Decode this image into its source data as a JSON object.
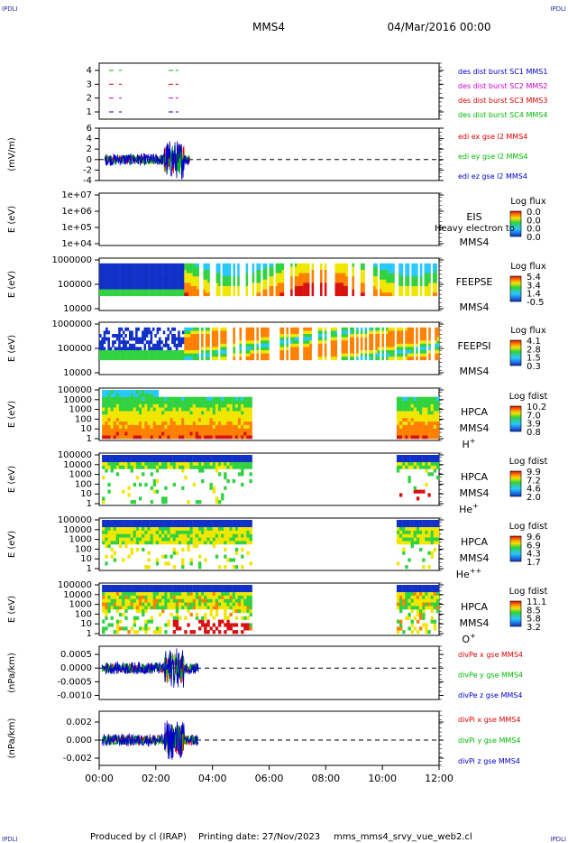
{
  "header": {
    "corner_tl": "IPDLI",
    "corner_tr": "IPDLI",
    "corner_bl": "IPDLI",
    "corner_br": "IPDLI",
    "spacecraft": "MMS4",
    "date": "04/Mar/2016 00:00"
  },
  "footer": {
    "produced_by": "Produced by cl (IRAP)",
    "printing_date": "Printing date: 27/Nov/2023",
    "script": "mms_mms4_srvy_vue_web2.cl"
  },
  "colors": {
    "spec_blue": "#1030c8",
    "spec_cyan": "#28c8ff",
    "spec_green": "#30d240",
    "spec_yellow": "#f0e600",
    "spec_orange": "#ff8000",
    "spec_red": "#d81010",
    "sc1": "#0000cc",
    "sc2": "#cc00cc",
    "sc3": "#dd0000",
    "sc4": "#00bb00"
  },
  "time_axis": {
    "ticks": [
      "00:00",
      "02:00",
      "04:00",
      "06:00",
      "08:00",
      "10:00",
      "12:00"
    ],
    "range_hours": [
      0,
      12
    ]
  },
  "chart_data": [
    {
      "type": "line",
      "id": "des-burst",
      "ylabel": "",
      "yticks": [
        "1",
        "2",
        "3",
        "4"
      ],
      "ylim": [
        0.5,
        4.5
      ],
      "series": [
        {
          "name": "des dist burst SC1 MMS1",
          "color": "#0000cc",
          "level": 1,
          "x": [
            0.35,
            0.7,
            2.45,
            2.7
          ]
        },
        {
          "name": "des dist burst SC2 MMS2",
          "color": "#cc00cc",
          "level": 2,
          "x": [
            0.35,
            0.7,
            2.45,
            2.7
          ]
        },
        {
          "name": "des dist burst SC3 MMS3",
          "color": "#dd0000",
          "level": 3,
          "x": [
            0.35,
            0.7,
            2.45,
            2.7
          ]
        },
        {
          "name": "des dist burst SC4 MMS4",
          "color": "#00bb00",
          "level": 4,
          "x": [
            0.35,
            0.7,
            2.45,
            2.7
          ]
        }
      ]
    },
    {
      "type": "line",
      "id": "edi-e",
      "ylabel": "(mV/m)",
      "yticks": [
        "-4",
        "-2",
        "0",
        "2",
        "4",
        "6"
      ],
      "ylim": [
        -4,
        6
      ],
      "x_range_hours": [
        0.2,
        3.2
      ],
      "series": [
        {
          "name": "edi ex gse l2 MMS4",
          "color": "#dd0000"
        },
        {
          "name": "edi ey gse l2 MMS4",
          "color": "#00bb00"
        },
        {
          "name": "edi ez gse l2 MMS4",
          "color": "#0000cc"
        }
      ]
    },
    {
      "type": "heatmap",
      "id": "eis",
      "ylabel": "E (eV)",
      "yticks": [
        "1e+04",
        "1e+05",
        "1e+06",
        "1e+07"
      ],
      "label": "EIS",
      "label2": "MMS4",
      "overlay_text": "Heavy electron to",
      "cbar_title": "Log flux",
      "cbar_ticks": [
        "0.0",
        "0.0",
        "0.0",
        "0.0"
      ],
      "data": []
    },
    {
      "type": "heatmap",
      "id": "feepse",
      "ylabel": "E (eV)",
      "yticks": [
        "10000",
        "100000",
        "1000000"
      ],
      "label": "FEEPSE",
      "label2": "MMS4",
      "cbar_title": "Log flux",
      "cbar_ticks": [
        "5.4",
        "3.4",
        "1.4",
        "-0.5"
      ]
    },
    {
      "type": "heatmap",
      "id": "feepsi",
      "ylabel": "E (eV)",
      "yticks": [
        "10000",
        "100000",
        "1000000"
      ],
      "label": "FEEPSI",
      "label2": "MMS4",
      "cbar_title": "Log flux",
      "cbar_ticks": [
        "4.1",
        "2.8",
        "1.5",
        "0.3"
      ]
    },
    {
      "type": "heatmap",
      "id": "hpca-h",
      "ylabel": "E (eV)",
      "yticks": [
        "1",
        "10",
        "100",
        "1000",
        "10000",
        "100000"
      ],
      "label": "HPCA",
      "label2": "MMS4",
      "species": "H",
      "species_sup": "+",
      "cbar_title": "Log fdist",
      "cbar_ticks": [
        "10.2",
        "7.0",
        "3.9",
        "0.8"
      ],
      "data_gap_hours": [
        5.35,
        10.5
      ]
    },
    {
      "type": "heatmap",
      "id": "hpca-he",
      "ylabel": "E (eV)",
      "yticks": [
        "1",
        "10",
        "100",
        "1000",
        "10000",
        "100000"
      ],
      "label": "HPCA",
      "label2": "MMS4",
      "species": "He",
      "species_sup": "+",
      "cbar_title": "Log fdist",
      "cbar_ticks": [
        "9.9",
        "7.2",
        "4.6",
        "2.0"
      ],
      "data_gap_hours": [
        5.35,
        10.5
      ]
    },
    {
      "type": "heatmap",
      "id": "hpca-hepp",
      "ylabel": "E (eV)",
      "yticks": [
        "1",
        "10",
        "100",
        "1000",
        "10000",
        "100000"
      ],
      "label": "HPCA",
      "label2": "MMS4",
      "species": "He",
      "species_sup": "++",
      "cbar_title": "Log fdist",
      "cbar_ticks": [
        "9.6",
        "6.9",
        "4.3",
        "1.7"
      ],
      "data_gap_hours": [
        5.35,
        10.5
      ]
    },
    {
      "type": "heatmap",
      "id": "hpca-o",
      "ylabel": "E (eV)",
      "yticks": [
        "1",
        "10",
        "100",
        "1000",
        "10000",
        "100000"
      ],
      "label": "HPCA",
      "label2": "MMS4",
      "species": "O",
      "species_sup": "+",
      "cbar_title": "Log fdist",
      "cbar_ticks": [
        "11.1",
        "8.5",
        "5.8",
        "3.2"
      ],
      "data_gap_hours": [
        5.35,
        10.5
      ]
    },
    {
      "type": "line",
      "id": "divpe",
      "ylabel": "(nPa/km)",
      "yticks": [
        "-0.0010",
        "-0.0005",
        "0.0000",
        "0.0005"
      ],
      "ylim": [
        -0.00115,
        0.0008
      ],
      "x_range_hours": [
        0.1,
        3.5
      ],
      "series": [
        {
          "name": "divPe x gse MMS4",
          "color": "#dd0000"
        },
        {
          "name": "divPe y gse MMS4",
          "color": "#00bb00"
        },
        {
          "name": "divPe z gse MMS4",
          "color": "#0000cc"
        }
      ]
    },
    {
      "type": "line",
      "id": "divpi",
      "ylabel": "(nPa/km)",
      "yticks": [
        "-0.002",
        "0.000",
        "0.002"
      ],
      "ylim": [
        -0.0028,
        0.0032
      ],
      "x_range_hours": [
        0.1,
        3.5
      ],
      "series": [
        {
          "name": "divPi x gse MMS4",
          "color": "#dd0000"
        },
        {
          "name": "divPi y gse MMS4",
          "color": "#00bb00"
        },
        {
          "name": "divPi z gse MMS4",
          "color": "#0000cc"
        }
      ]
    }
  ]
}
